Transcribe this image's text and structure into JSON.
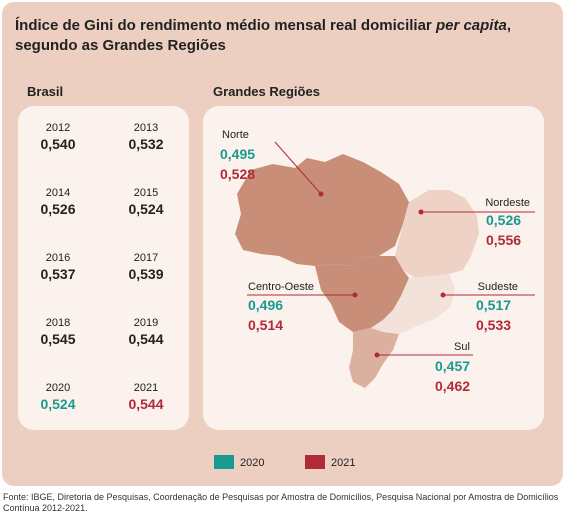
{
  "title_main": "Índice de Gini do rendimento médio mensal real domiciliar ",
  "title_italic": "per capita",
  "title_tail": ",",
  "title_line2": "segundo as Grandes Regiões",
  "brasil_label": "Brasil",
  "regioes_label": "Grandes Regiões",
  "chart_data": {
    "type": "table",
    "brasil": [
      {
        "year": "2012",
        "value": "0,540"
      },
      {
        "year": "2013",
        "value": "0,532"
      },
      {
        "year": "2014",
        "value": "0,526"
      },
      {
        "year": "2015",
        "value": "0,524"
      },
      {
        "year": "2016",
        "value": "0,537"
      },
      {
        "year": "2017",
        "value": "0,539"
      },
      {
        "year": "2018",
        "value": "0,545"
      },
      {
        "year": "2019",
        "value": "0,544"
      },
      {
        "year": "2020",
        "value": "0,524"
      },
      {
        "year": "2021",
        "value": "0,544"
      }
    ],
    "regions": [
      {
        "name": "Norte",
        "v2020": "0,495",
        "v2021": "0,528"
      },
      {
        "name": "Nordeste",
        "v2020": "0,526",
        "v2021": "0,556"
      },
      {
        "name": "Centro-Oeste",
        "v2020": "0,496",
        "v2021": "0,514"
      },
      {
        "name": "Sudeste",
        "v2020": "0,517",
        "v2021": "0,533"
      },
      {
        "name": "Sul",
        "v2020": "0,457",
        "v2021": "0,462"
      }
    ],
    "legend": [
      "2020",
      "2021"
    ]
  },
  "colors": {
    "y2020": "#1a9a8f",
    "y2021": "#b02a37",
    "panel": "#edcfc1",
    "card": "#fbf2ed"
  },
  "source": "Fonte: IBGE, Diretoria de Pesquisas, Coordenação de Pesquisas por Amostra de Domicílios, Pesquisa Nacional por Amostra de Domicílios Contínua 2012-2021."
}
